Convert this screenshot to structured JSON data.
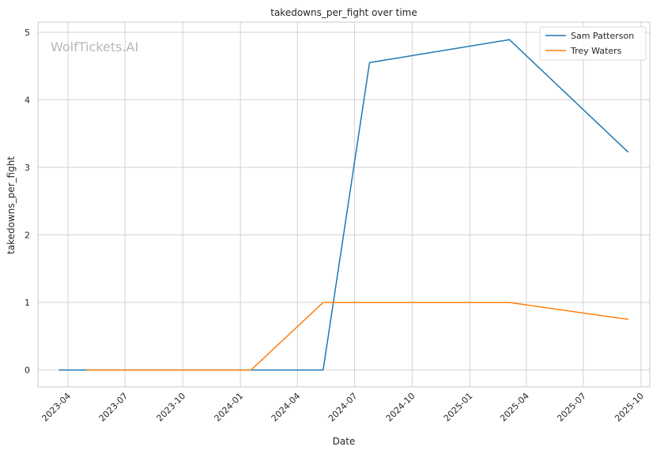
{
  "chart_data": {
    "type": "line",
    "title": "takedowns_per_fight over time",
    "xlabel": "Date",
    "ylabel": "takedowns_per_fight",
    "watermark": "WolfTickets.AI",
    "x_ticks": [
      "2023-04",
      "2023-07",
      "2023-10",
      "2024-01",
      "2024-04",
      "2024-07",
      "2024-10",
      "2025-01",
      "2025-04",
      "2025-07",
      "2025-10"
    ],
    "y_ticks": [
      0,
      1,
      2,
      3,
      4,
      5
    ],
    "xlim": [
      "2023-02-12",
      "2025-10-15"
    ],
    "ylim": [
      -0.25,
      5.15
    ],
    "grid": true,
    "legend_position": "top-right",
    "colors": {
      "grid": "#d3d3d3",
      "frame": "#c8c8c8",
      "text": "#262626"
    },
    "series": [
      {
        "name": "Sam Patterson",
        "color": "#1f77b4",
        "points": [
          {
            "x": "2023-03-18",
            "y": 0
          },
          {
            "x": "2024-05-12",
            "y": 0
          },
          {
            "x": "2024-07-25",
            "y": 4.55
          },
          {
            "x": "2025-03-05",
            "y": 4.89
          },
          {
            "x": "2025-09-10",
            "y": 3.23
          }
        ]
      },
      {
        "name": "Trey Waters",
        "color": "#ff7f0e",
        "points": [
          {
            "x": "2023-05-01",
            "y": 0
          },
          {
            "x": "2024-01-18",
            "y": 0
          },
          {
            "x": "2024-05-12",
            "y": 1
          },
          {
            "x": "2025-03-05",
            "y": 1
          },
          {
            "x": "2025-09-10",
            "y": 0.75
          }
        ]
      }
    ]
  }
}
